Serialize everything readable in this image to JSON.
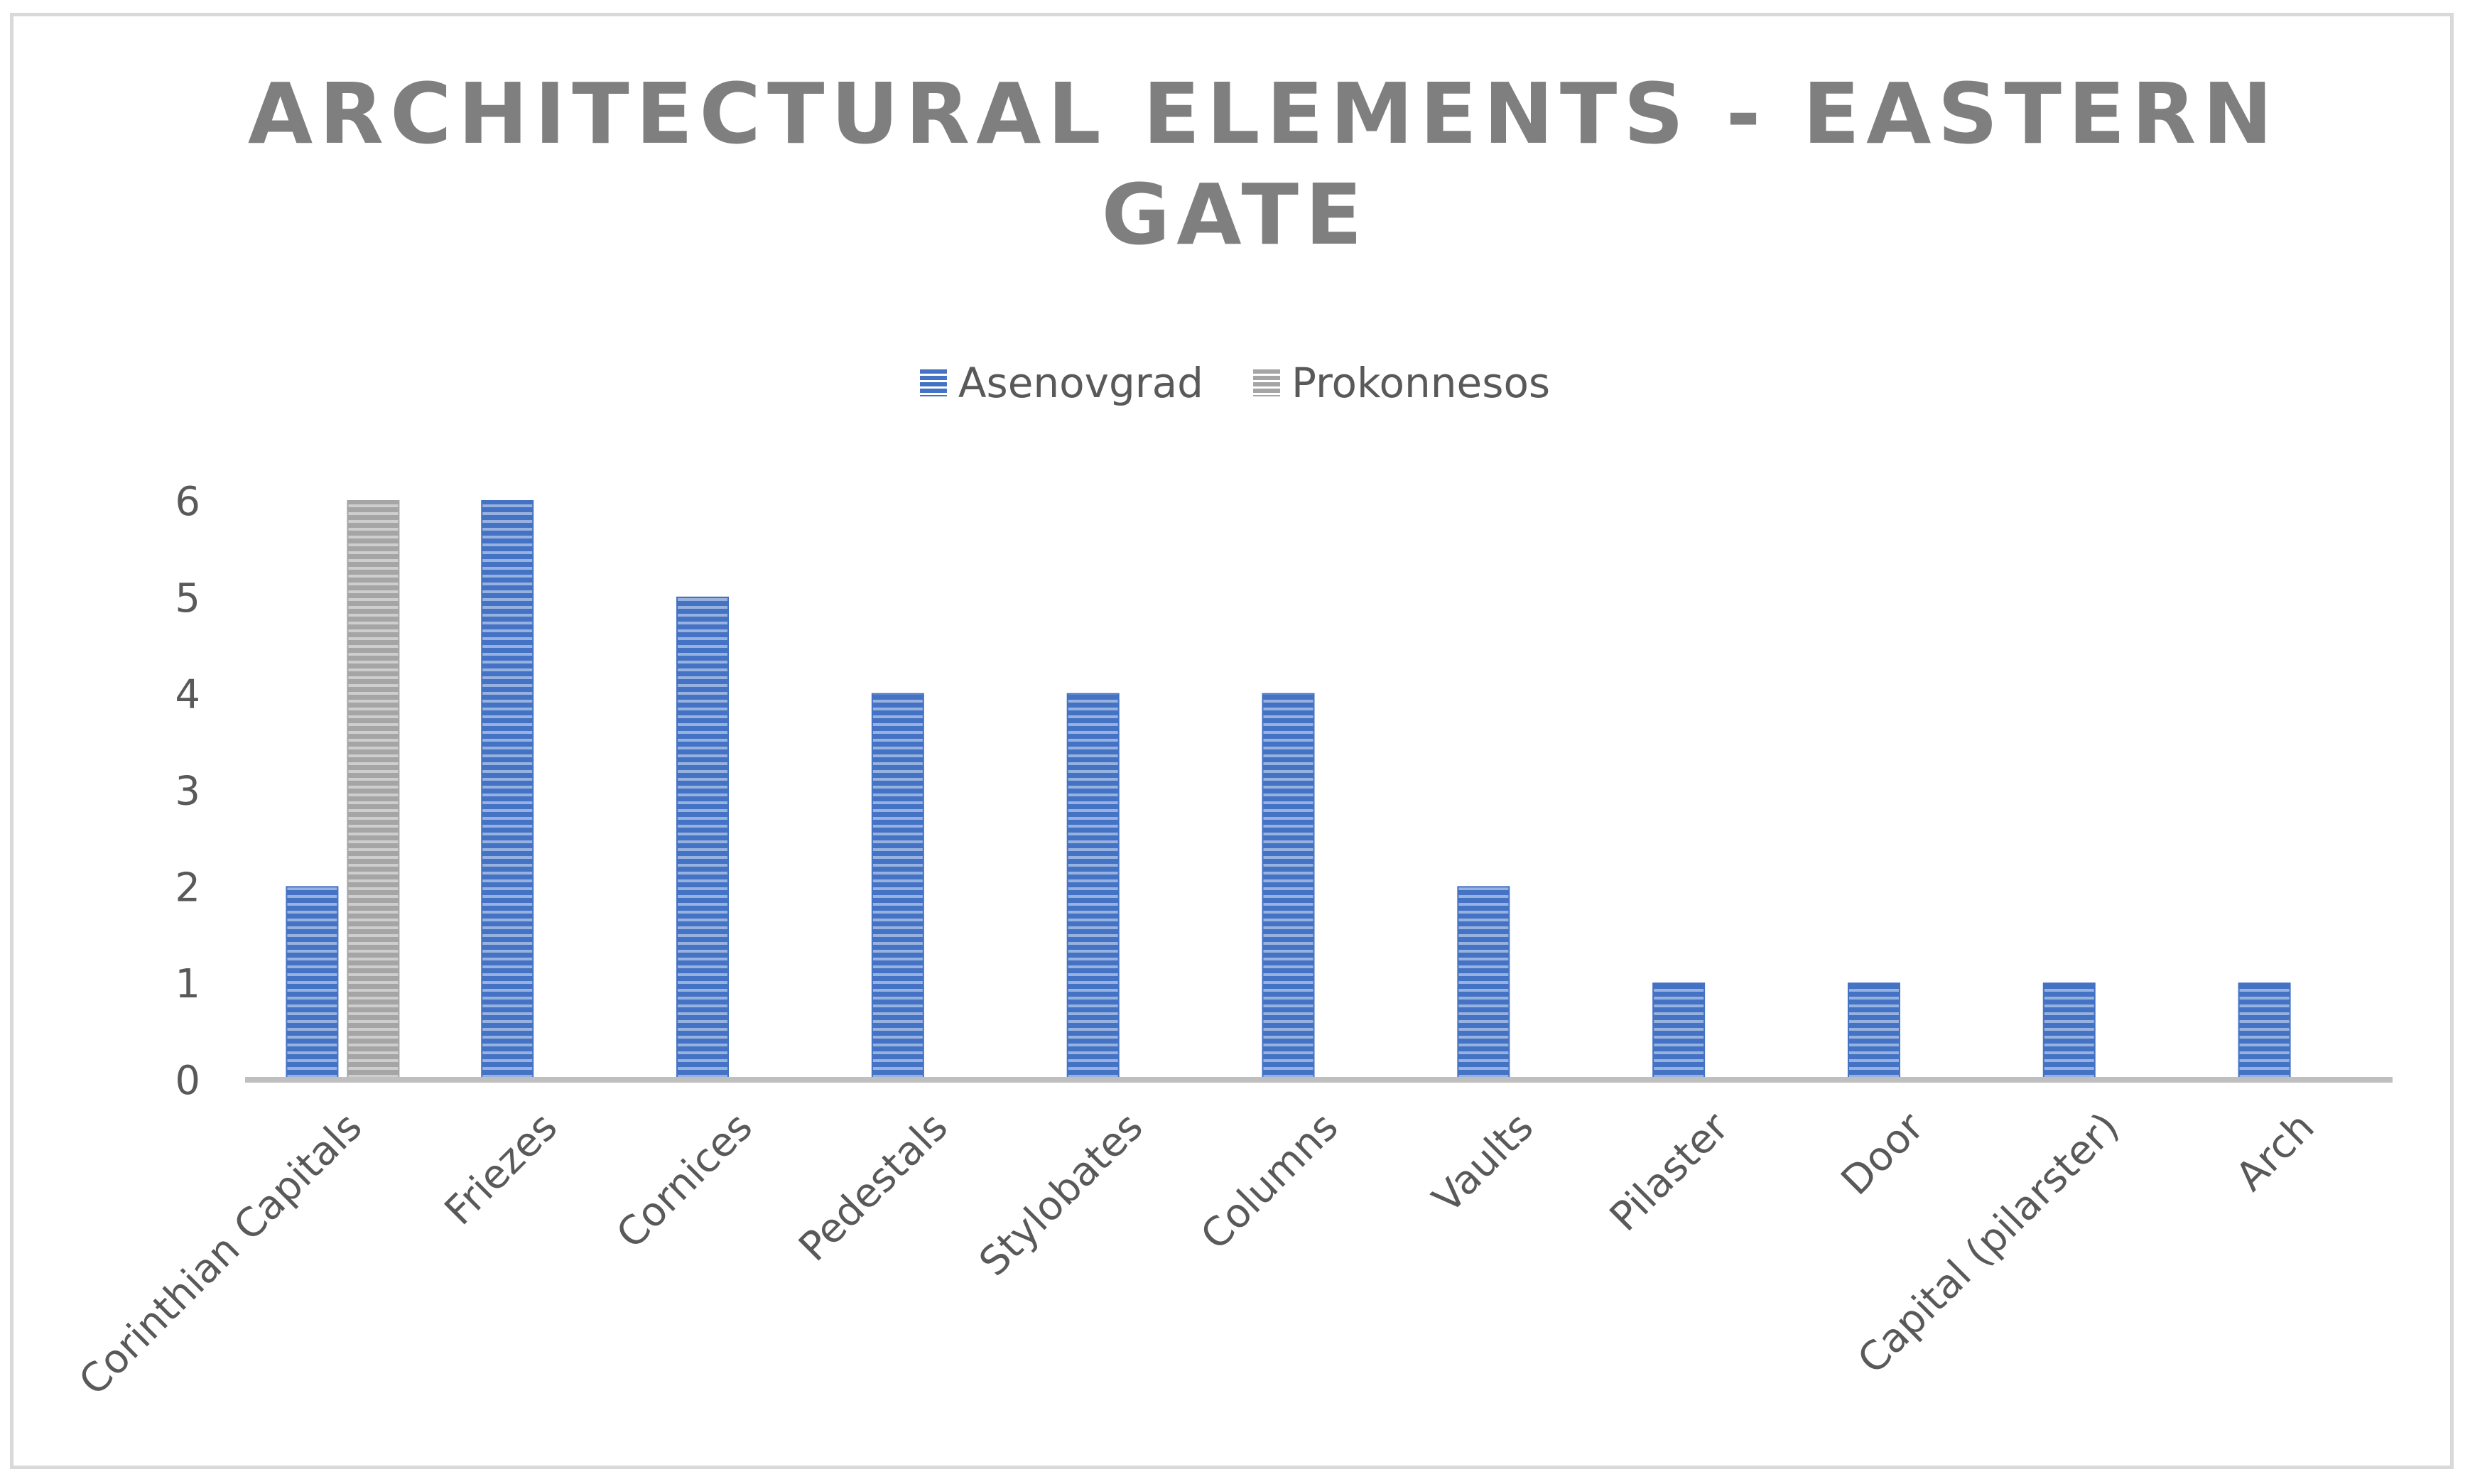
{
  "chart_data": {
    "type": "bar",
    "title_lines": [
      "ARCHITECTURAL ELEMENTS - EASTERN",
      "GATE"
    ],
    "categories": [
      "Corinthian Capitals",
      "Friezes",
      "Cornices",
      "Pedestals",
      "Stylobates",
      "Columns",
      "Vaults",
      "Pilaster",
      "Door",
      "Capital (pilarster)",
      "Arch"
    ],
    "series": [
      {
        "name": "Asenovgrad",
        "values": [
          2,
          6,
          5,
          4,
          4,
          4,
          2,
          1,
          1,
          1,
          1
        ],
        "color": "#4472c4"
      },
      {
        "name": "Prokonnesos",
        "values": [
          6,
          0,
          0,
          0,
          0,
          0,
          0,
          0,
          0,
          0,
          0
        ],
        "color": "#a5a5a5"
      }
    ],
    "ylim": [
      0,
      6
    ],
    "yticks": [
      0,
      1,
      2,
      3,
      4,
      5,
      6
    ],
    "grid": false,
    "legend_position": "top"
  }
}
